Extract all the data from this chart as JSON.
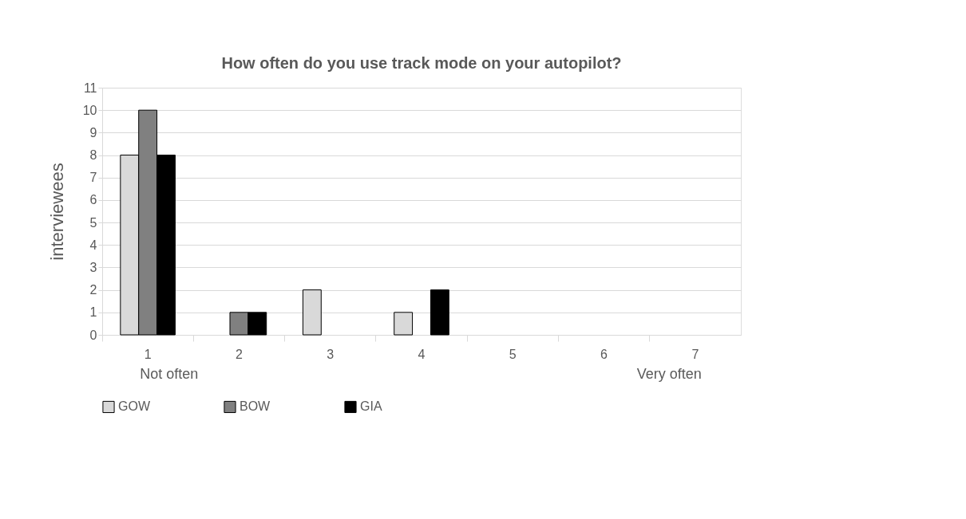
{
  "chart_data": {
    "type": "bar",
    "title": "How often do you use track mode on your autopilot?",
    "ylabel": "interviewees",
    "categories": [
      "1",
      "2",
      "3",
      "4",
      "5",
      "6",
      "7"
    ],
    "series": [
      {
        "name": "GOW",
        "color": "#d9d9d9",
        "values": [
          8,
          0,
          2,
          1,
          0,
          0,
          0
        ]
      },
      {
        "name": "BOW",
        "color": "#808080",
        "values": [
          10,
          1,
          0,
          0,
          0,
          0,
          0
        ]
      },
      {
        "name": "GIA",
        "color": "#000000",
        "values": [
          8,
          1,
          0,
          2,
          0,
          0,
          0
        ]
      }
    ],
    "ylim": [
      0,
      11
    ],
    "yticks": [
      0,
      1,
      2,
      3,
      4,
      5,
      6,
      7,
      8,
      9,
      10,
      11
    ],
    "grid": "y",
    "legend": "bottom",
    "annotations": [
      "Not often",
      "Very often"
    ]
  }
}
